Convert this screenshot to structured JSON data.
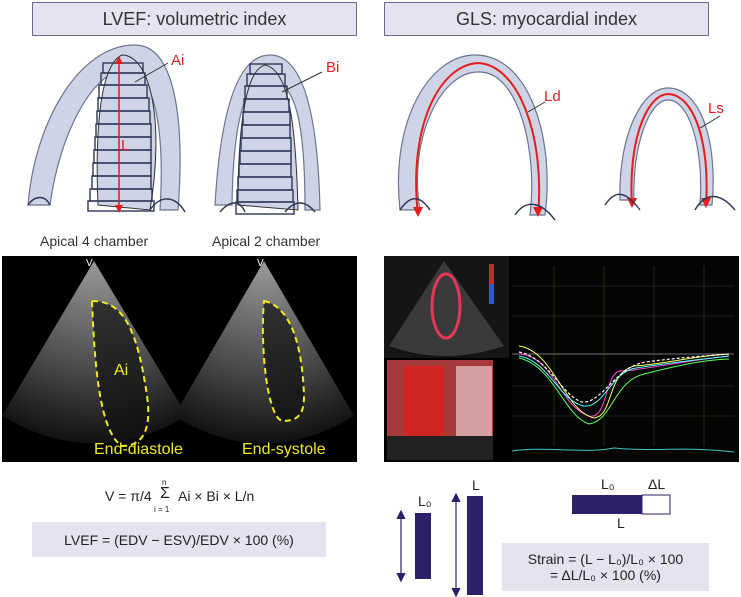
{
  "header_left": "LVEF: volumetric index",
  "header_right": "GLS: myocardial index",
  "label_ai": "Ai",
  "label_bi": "Bi",
  "label_l": "L",
  "label_ld": "Ld",
  "label_ls": "Ls",
  "caption_a4c": "Apical 4 chamber",
  "caption_a2c": "Apical 2 chamber",
  "echo_ai": "Ai",
  "echo_ed": "End-diastole",
  "echo_es": "End-systole",
  "formula_v_left": "V = π/4",
  "formula_sum": "Σ",
  "formula_sum_top": "n",
  "formula_sum_bottom": "i = 1",
  "formula_v_right": "Ai × Bi × L/n",
  "formula_lvef": "LVEF = (EDV − ESV)/EDV × 100 (%)",
  "bar_l0": "L₀",
  "bar_l": "L",
  "strip_l0": "L₀",
  "strip_dl": "ΔL",
  "strip_l": "L",
  "strain_line1": "Strain = (L − L₀)/L₀ × 100",
  "strain_line2": "= ΔL/L₀ × 100 (%)",
  "colors": {
    "accent": "#2e1f6b",
    "red": "#e41d1d",
    "header_bg": "#e4e3ef",
    "echo_trace": "#f2ea1c"
  }
}
